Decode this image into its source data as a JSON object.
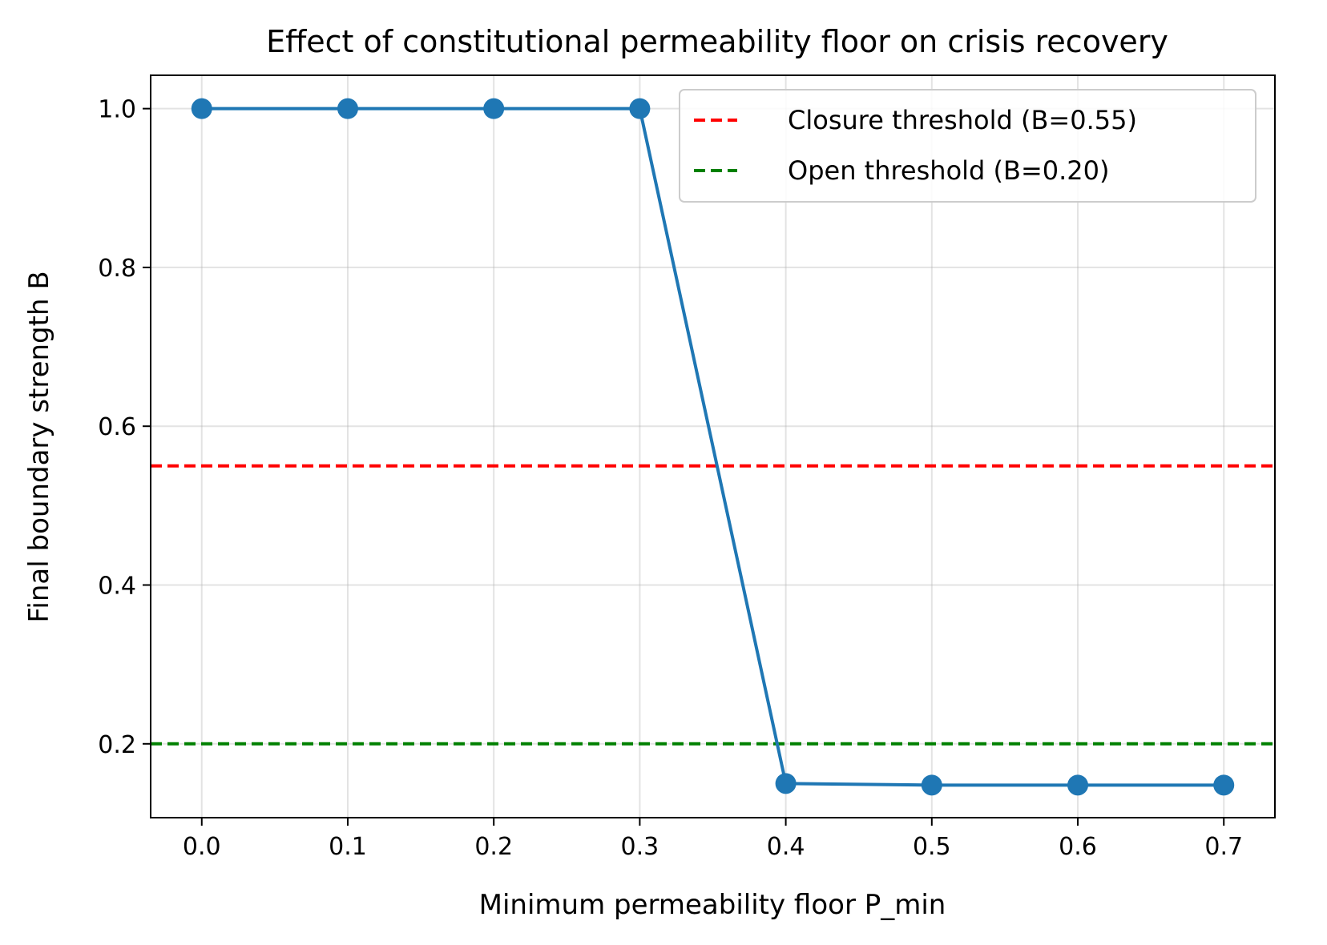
{
  "chart_data": {
    "type": "line",
    "title": "Effect of constitutional permeability floor on crisis recovery",
    "xlabel": "Minimum permeability floor P_min",
    "ylabel": "Final boundary strength B",
    "x": [
      0.0,
      0.1,
      0.2,
      0.3,
      0.4,
      0.5,
      0.6,
      0.7
    ],
    "series": [
      {
        "color": "#1f77b4",
        "marker": "circle",
        "values": [
          1.0,
          1.0,
          1.0,
          1.0,
          0.15,
          0.148,
          0.148,
          0.148
        ]
      }
    ],
    "reference_lines": [
      {
        "label": "Closure threshold (B=0.55)",
        "y": 0.55,
        "color": "#ff0000",
        "style": "dashed"
      },
      {
        "label": "Open threshold (B=0.20)",
        "y": 0.2,
        "color": "#008000",
        "style": "dashed"
      }
    ],
    "xlim": [
      -0.035,
      0.735
    ],
    "ylim": [
      0.107,
      1.042
    ],
    "xticks": [
      "0.0",
      "0.1",
      "0.2",
      "0.3",
      "0.4",
      "0.5",
      "0.6",
      "0.7"
    ],
    "xtick_values": [
      0.0,
      0.1,
      0.2,
      0.3,
      0.4,
      0.5,
      0.6,
      0.7
    ],
    "yticks": [
      "0.2",
      "0.4",
      "0.6",
      "0.8",
      "1.0"
    ],
    "ytick_values": [
      0.2,
      0.4,
      0.6,
      0.8,
      1.0
    ],
    "grid": true,
    "legend_position": "top-right"
  }
}
